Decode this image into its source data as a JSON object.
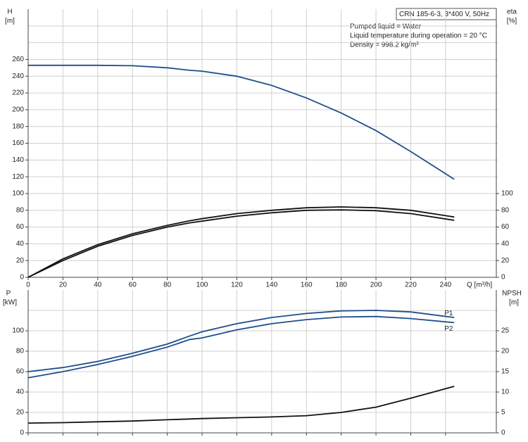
{
  "chart_data": [
    {
      "type": "line",
      "ylabel": "H",
      "yunit": "[m]",
      "y2label": "eta",
      "y2unit": "[%]",
      "xlabel": "Q [m³/h]",
      "box_title": "CRN 185-6-3, 3*400 V, 50Hz",
      "annotations": [
        "Pumped liquid = Water",
        "Liquid temperature during operation = 20 °C",
        "Density = 998.2 kg/m³"
      ],
      "x": [
        0,
        20,
        40,
        60,
        80,
        93,
        100,
        120,
        140,
        160,
        180,
        200,
        220,
        245
      ],
      "xlim": [
        0,
        270
      ],
      "xticks": [
        0,
        20,
        40,
        60,
        80,
        100,
        120,
        140,
        160,
        180,
        200,
        220,
        240
      ],
      "ylim": [
        0,
        320
      ],
      "yticks": [
        0,
        20,
        40,
        60,
        80,
        100,
        120,
        140,
        160,
        180,
        200,
        220,
        240,
        260
      ],
      "ygrid": [
        280,
        300
      ],
      "y2lim": [
        0,
        320
      ],
      "y2ticks": [
        0,
        20,
        40,
        60,
        80,
        100
      ],
      "grid": true,
      "series": [
        {
          "color": "#1f4e8c",
          "values": [
            253,
            253,
            253,
            252.5,
            250,
            247,
            246,
            240,
            229,
            214,
            196,
            175,
            150,
            117
          ]
        },
        {
          "color": "#111111",
          "axis": "y2",
          "values": [
            0,
            22,
            39,
            52,
            62,
            67.5,
            70,
            76,
            80,
            83,
            84,
            83,
            80,
            72
          ]
        },
        {
          "color": "#111111",
          "axis": "y2",
          "values": [
            0,
            20,
            37,
            50,
            60,
            65,
            67,
            73,
            77,
            80,
            80.5,
            79.5,
            76,
            68
          ]
        }
      ]
    },
    {
      "type": "line",
      "ylabel": "P",
      "yunit": "[kW]",
      "y2label": "NPSH",
      "y2unit": "[m]",
      "x": [
        0,
        20,
        40,
        60,
        80,
        93,
        100,
        120,
        140,
        160,
        180,
        200,
        220,
        245
      ],
      "xlim": [
        0,
        270
      ],
      "xticks": [
        0,
        20,
        40,
        60,
        80,
        100,
        120,
        140,
        160,
        180,
        200,
        220,
        240
      ],
      "ylim": [
        0,
        140
      ],
      "yticks": [
        0,
        20,
        40,
        60,
        80,
        100
      ],
      "ygrid": [
        120
      ],
      "y2lim": [
        0,
        35
      ],
      "y2ticks": [
        0,
        5,
        10,
        15,
        20,
        25
      ],
      "grid": true,
      "series": [
        {
          "name": "P1",
          "color": "#1f4e8c",
          "values": [
            60,
            64,
            70,
            78,
            87,
            95,
            99,
            107,
            113,
            117,
            119.5,
            120,
            118.5,
            113
          ]
        },
        {
          "name": "P2",
          "color": "#1f4e8c",
          "values": [
            54,
            60,
            67,
            75,
            84,
            91.5,
            93,
            101,
            107,
            111,
            113.5,
            114,
            112,
            108
          ]
        },
        {
          "color": "#111111",
          "axis": "y2",
          "values": [
            2.4,
            2.5,
            2.7,
            2.9,
            3.2,
            3.4,
            3.5,
            3.7,
            3.9,
            4.2,
            5,
            6.3,
            8.5,
            11.4
          ]
        }
      ]
    }
  ]
}
